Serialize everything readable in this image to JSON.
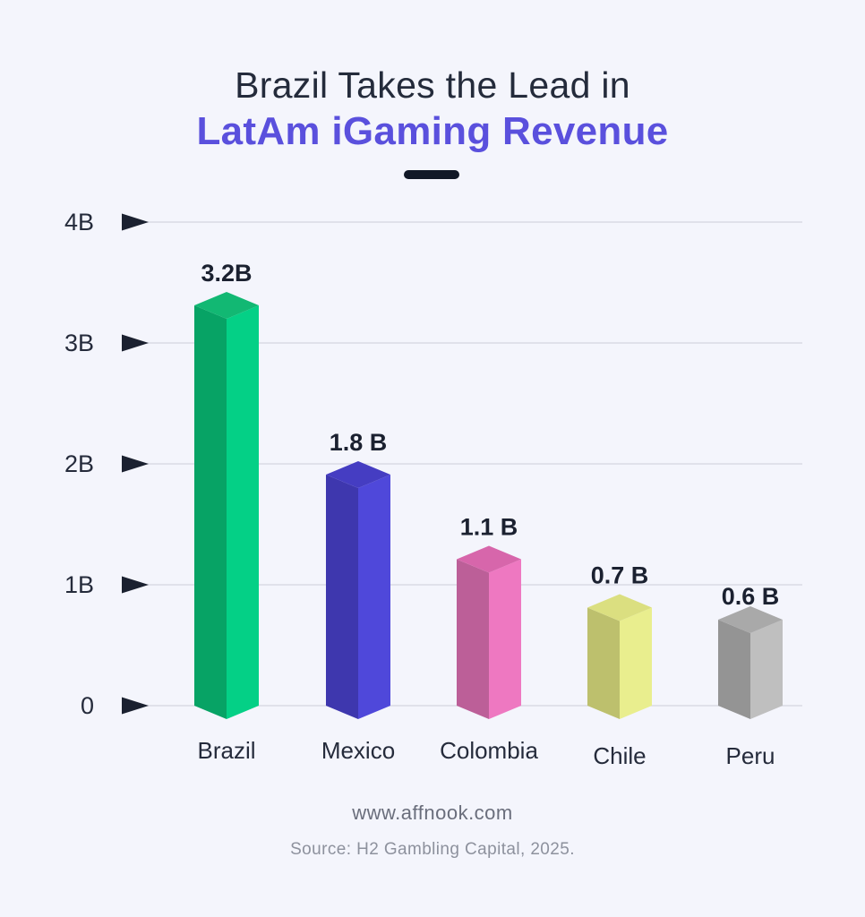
{
  "header": {
    "title_line1": "Brazil Takes the Lead in",
    "title_line2": "LatAm iGaming Revenue",
    "title_color": "#242b3b",
    "title_accent_color": "#5a50dd"
  },
  "footer": {
    "website": "www.affnook.com",
    "source": "Source: H2 Gambling Capital, 2025."
  },
  "colors": {
    "background": "#f4f5fc",
    "gridline": "#d3d5de",
    "axis_marker": "#1b2130",
    "tick_label": "#252b3b",
    "value_label": "#1b2130",
    "category_label": "#252b3b"
  },
  "chart_data": {
    "type": "bar",
    "title": "Brazil Takes the Lead in LatAm iGaming Revenue",
    "xlabel": "",
    "ylabel": "",
    "ylim": [
      0,
      4
    ],
    "grid": true,
    "legend": false,
    "bar_style": "3d-isometric",
    "categories": [
      "Brazil",
      "Mexico",
      "Colombia",
      "Chile",
      "Peru"
    ],
    "values": [
      3.2,
      1.8,
      1.1,
      0.7,
      0.6
    ],
    "value_labels": [
      "3.2B",
      "1.8 B",
      "1.1 B",
      "0.7 B",
      "0.6 B"
    ],
    "y_ticks": [
      {
        "label": "4B",
        "value": 4
      },
      {
        "label": "3B",
        "value": 3
      },
      {
        "label": "2B",
        "value": 2
      },
      {
        "label": "1B",
        "value": 1
      },
      {
        "label": "0",
        "value": 0
      }
    ],
    "bar_colors": [
      {
        "name": "Brazil",
        "left": "#07a365",
        "right": "#04d086",
        "top": "#12b873"
      },
      {
        "name": "Mexico",
        "left": "#3e37ae",
        "right": "#4f48da",
        "top": "#453dc2"
      },
      {
        "name": "Colombia",
        "left": "#bc5f98",
        "right": "#ee78c1",
        "top": "#d766ab"
      },
      {
        "name": "Chile",
        "left": "#bdc06d",
        "right": "#e9ee8e",
        "top": "#dbdf80"
      },
      {
        "name": "Peru",
        "left": "#949494",
        "right": "#bfbfbf",
        "top": "#a9a9a9"
      }
    ]
  }
}
